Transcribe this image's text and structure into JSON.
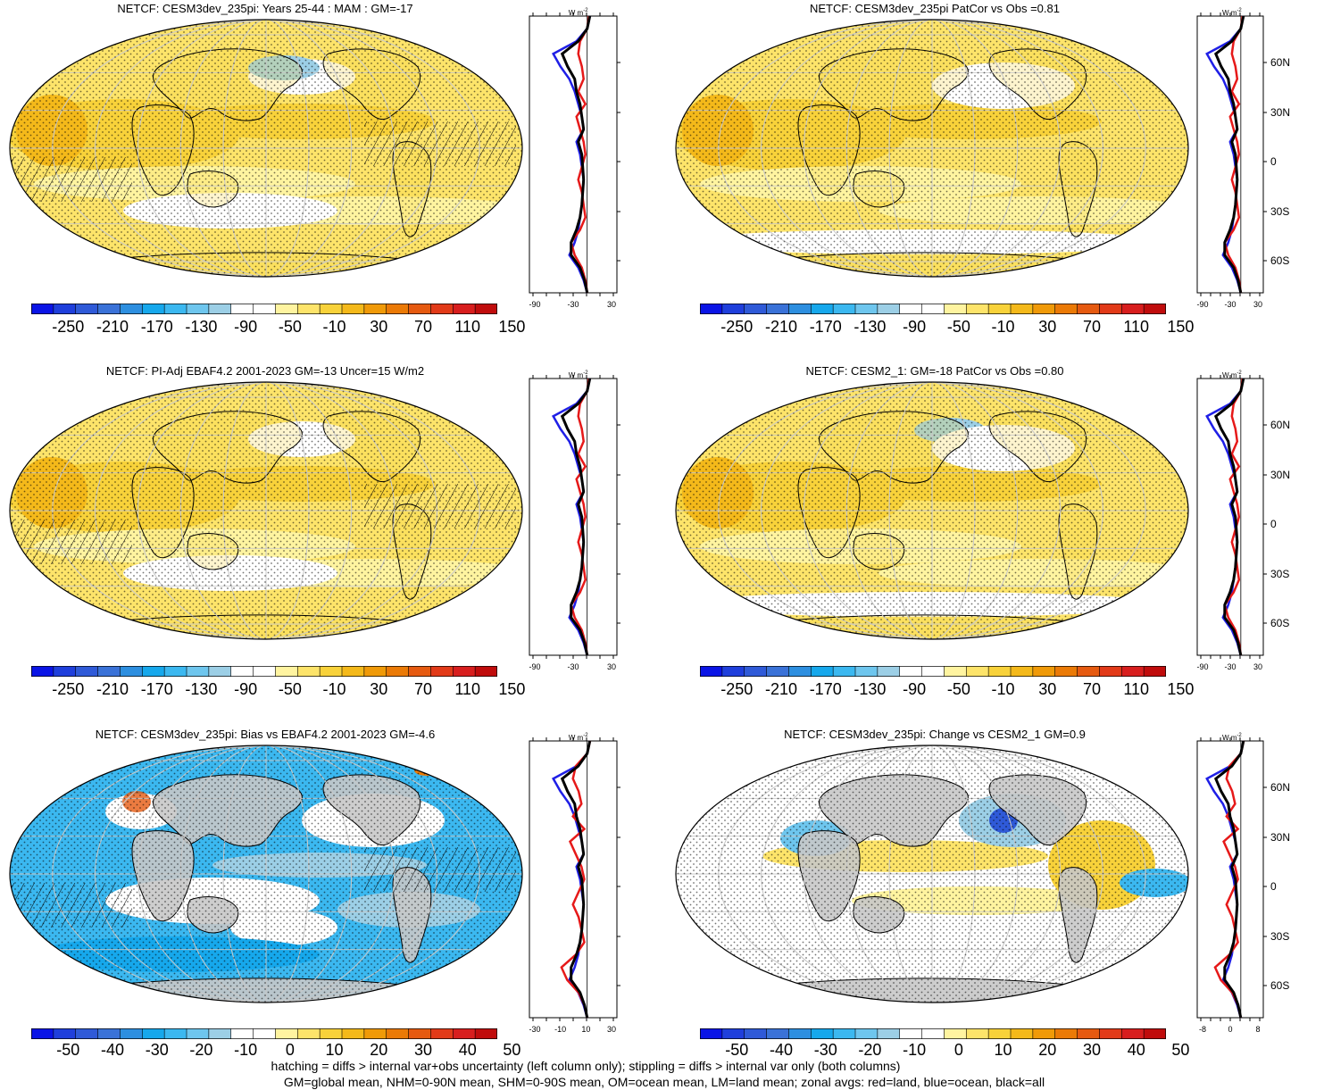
{
  "panels": [
    {
      "title": "NETCF: CESM3dev_235pi: Years 25-44 : MAM : GM=-17",
      "kind": "mean",
      "hatch": true
    },
    {
      "title": "NETCF: CESM3dev_235pi PatCor vs Obs =0.81",
      "kind": "mean",
      "hatch": false
    },
    {
      "title": "NETCF: PI-Adj EBAF4.2 2001-2023 GM=-13 Uncer=15 W/m2",
      "kind": "mean",
      "hatch": true
    },
    {
      "title": "NETCF: CESM2_1: GM=-18 PatCor vs Obs =0.80",
      "kind": "mean",
      "hatch": false
    },
    {
      "title": "NETCF: CESM3dev_235pi: Bias vs EBAF4.2 2001-2023 GM=-4.6",
      "kind": "diff",
      "hatch": true
    },
    {
      "title": "NETCF: CESM3dev_235pi: Change vs CESM2_1 GM=0.9",
      "kind": "diff",
      "hatch": false
    }
  ],
  "colorbars": {
    "mean_labels": [
      "-250",
      "-210",
      "-170",
      "-130",
      "-90",
      "-50",
      "-10",
      "30",
      "70",
      "110",
      "150"
    ],
    "diff_labels": [
      "-50",
      "-40",
      "-30",
      "-20",
      "-10",
      "0",
      "10",
      "20",
      "30",
      "40",
      "50"
    ],
    "mean_colors": [
      "#0a14e6",
      "#1f3fdc",
      "#2f5ad8",
      "#3a72d8",
      "#2d8fe0",
      "#16a8ec",
      "#3bb8f0",
      "#6ec6ee",
      "#9ccfe6",
      "#ffffff",
      "#ffffff",
      "#fff4a0",
      "#fde46a",
      "#f8d23a",
      "#f4b91a",
      "#f09a08",
      "#eb7a06",
      "#e65a10",
      "#e23a18",
      "#d81e1e",
      "#c00c0c"
    ],
    "diff_colors": [
      "#0a14e6",
      "#1f3fdc",
      "#2f5ad8",
      "#3a72d8",
      "#2d8fe0",
      "#16a8ec",
      "#3bb8f0",
      "#6ec6ee",
      "#9ccfe6",
      "#ffffff",
      "#ffffff",
      "#fff4a0",
      "#fde46a",
      "#f8d23a",
      "#f4b91a",
      "#f09a08",
      "#eb7a06",
      "#e65a10",
      "#e23a18",
      "#d81e1e",
      "#c00c0c"
    ]
  },
  "zonal": {
    "units": "W m",
    "units_sup": "-2",
    "lat_labels": [
      "60N",
      "30N",
      "0",
      "30S",
      "60S"
    ],
    "mean_ticks": [
      "-90",
      "-30",
      "30"
    ],
    "bias_ticks": [
      "-30",
      "-10",
      "10",
      "30"
    ],
    "change_ticks": [
      "-8",
      "0",
      "8"
    ]
  },
  "legend": {
    "red": "land",
    "blue": "ocean",
    "black": "all",
    "colors": {
      "land": "#e61919",
      "ocean": "#1f1fe6",
      "all": "#000000"
    }
  },
  "map_colors": {
    "ocean_mean": "#fde46a",
    "land_mean": "#f8d23a",
    "missing": "#c8c8c8",
    "bias_blue": "#3bb8f0",
    "bias_white": "#ffffff"
  },
  "footer": {
    "line1": "hatching = diffs > internal var+obs uncertainty (left column only); stippling = diffs > internal var only (both columns)",
    "line2": "GM=global mean, NHM=0-90N mean, SHM=0-90S mean, OM=ocean mean, LM=land mean; zonal avgs: red=land, blue=ocean, black=all"
  }
}
